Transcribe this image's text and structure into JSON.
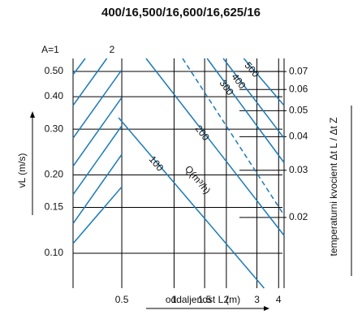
{
  "chart_data": {
    "type": "line",
    "title": "400/16,500/16,600/16,625/16",
    "xlabel": "oddaljenost L (m)",
    "ylabel": "vL (m/s)",
    "y2label": "temperaturni kvocient Δt L / Δt Z",
    "annotations": [
      "A=1",
      "2",
      "Q(m³/h)"
    ],
    "log_x": true,
    "log_y": true,
    "log_y2": true,
    "grid": true,
    "xlim": [
      0.262,
      4.3
    ],
    "ylim": [
      0.0734,
      0.561
    ],
    "y2lim": [
      0.0109,
      0.0783
    ],
    "xticks": [
      0.5,
      1,
      1.5,
      2,
      3,
      4
    ],
    "yticks": [
      {
        "value": 0.5,
        "label": "0.50"
      },
      {
        "value": 0.4,
        "label": "0.40"
      },
      {
        "value": 0.3,
        "label": "0.30"
      },
      {
        "value": 0.2,
        "label": "0.20"
      },
      {
        "value": 0.15,
        "label": "0.15"
      },
      {
        "value": 0.1,
        "label": "0.10"
      }
    ],
    "y2ticks": [
      0.07,
      0.06,
      0.05,
      0.04,
      0.03,
      0.02
    ],
    "series": [
      {
        "name": "100",
        "color": "#1a7ab8",
        "x": [
          0.479,
          3.3
        ],
        "values": [
          0.332,
          0.0734
        ]
      },
      {
        "name": "200",
        "color": "#1a7ab8",
        "x": [
          0.69,
          4.3
        ],
        "values": [
          0.561,
          0.117
        ]
      },
      {
        "color": "#1a7ab8",
        "dash": true,
        "x": [
          1.12,
          4.3
        ],
        "values": [
          0.561,
          0.14
        ]
      },
      {
        "name": "300",
        "color": "#1a7ab8",
        "x": [
          1.55,
          4.3
        ],
        "values": [
          0.561,
          0.223
        ]
      },
      {
        "name": "400",
        "color": "#1a7ab8",
        "x": [
          1.92,
          4.3
        ],
        "values": [
          0.561,
          0.277
        ]
      },
      {
        "name": "500",
        "color": "#1a7ab8",
        "x": [
          2.52,
          4.3
        ],
        "values": [
          0.561,
          0.37
        ]
      },
      {
        "color": "#1a7ab8",
        "x": [
          0.262,
          0.308
        ],
        "values": [
          0.486,
          0.561
        ]
      },
      {
        "color": "#1a7ab8",
        "x": [
          0.262,
          0.41
        ],
        "values": [
          0.37,
          0.561
        ]
      },
      {
        "color": "#1a7ab8",
        "x": [
          0.262,
          0.5
        ],
        "values": [
          0.277,
          0.507
        ]
      },
      {
        "color": "#1a7ab8",
        "x": [
          0.262,
          0.5
        ],
        "values": [
          0.216,
          0.397
        ]
      },
      {
        "color": "#1a7ab8",
        "x": [
          0.262,
          0.5
        ],
        "values": [
          0.168,
          0.309
        ]
      },
      {
        "color": "#1a7ab8",
        "x": [
          0.262,
          0.5
        ],
        "values": [
          0.13,
          0.24
        ]
      },
      {
        "color": "#1a7ab8",
        "x": [
          0.262,
          0.5
        ],
        "values": [
          0.109,
          0.18
        ]
      }
    ]
  }
}
